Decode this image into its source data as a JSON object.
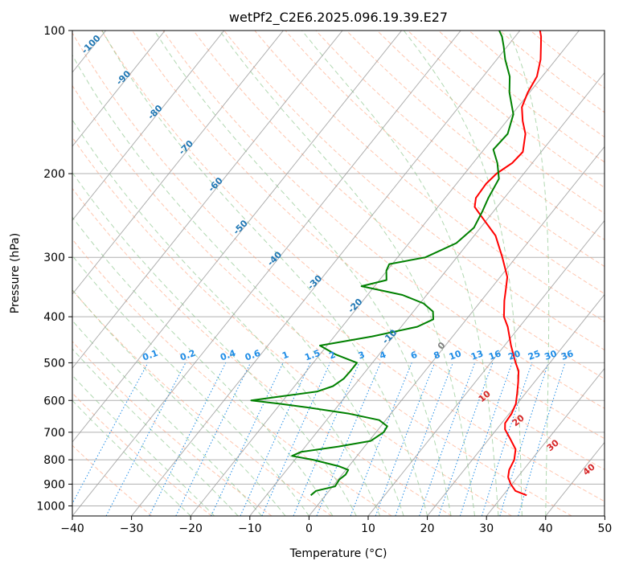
{
  "chart_data": {
    "type": "line",
    "diagram": "skew-T log-P",
    "title": "wetPf2_C2E6.2025.096.19.39.E27",
    "xlabel": "Temperature (°C)",
    "ylabel": "Pressure (hPa)",
    "xlim": [
      -40,
      50
    ],
    "ylim": [
      1050,
      100
    ],
    "yscale": "log",
    "x_ticks": [
      "−40",
      "−30",
      "−20",
      "−10",
      "0",
      "10",
      "20",
      "30",
      "40",
      "50"
    ],
    "x_tick_values": [
      -40,
      -30,
      -20,
      -10,
      0,
      10,
      20,
      30,
      40,
      50
    ],
    "y_ticks": [
      "100",
      "200",
      "300",
      "400",
      "500",
      "600",
      "700",
      "800",
      "900",
      "1000"
    ],
    "y_tick_values": [
      100,
      200,
      300,
      400,
      500,
      600,
      700,
      800,
      900,
      1000
    ],
    "colors": {
      "temperature": "#ff0000",
      "dewpoint": "#008000",
      "isotherm": "#999999",
      "dry_adiabat": "#ffa07a",
      "moist_adiabat": "#90c890",
      "mixing_ratio": "#1e8ce6",
      "dry_adiabat_label": "#d62728",
      "isotherm_label": "#1f77b4",
      "gridline": "#b0b0b0"
    },
    "isotherm_labels": [
      {
        "value": "-100",
        "t": -100
      },
      {
        "value": "-90",
        "t": -90
      },
      {
        "value": "-80",
        "t": -80
      },
      {
        "value": "-70",
        "t": -70
      },
      {
        "value": "-60",
        "t": -60
      },
      {
        "value": "-50",
        "t": -50
      },
      {
        "value": "-40",
        "t": -40
      },
      {
        "value": "-30",
        "t": -30
      },
      {
        "value": "-20",
        "t": -20
      },
      {
        "value": "-10",
        "t": -10
      },
      {
        "value": "0",
        "t": 0
      }
    ],
    "mixing_ratio_labels": [
      "0.1",
      "0.2",
      "0.4",
      "0.6",
      "1",
      "1.5",
      "2",
      "3",
      "4",
      "6",
      "8",
      "10",
      "13",
      "16",
      "20",
      "25",
      "30",
      "36"
    ],
    "mixing_ratio_values": [
      0.1,
      0.2,
      0.4,
      0.6,
      1,
      1.5,
      2,
      3,
      4,
      6,
      8,
      10,
      13,
      16,
      20,
      25,
      30,
      36
    ],
    "dry_adiabat_labels": [
      "10",
      "20",
      "30",
      "40"
    ],
    "series": [
      {
        "id": "temperature",
        "points": [
          [
            950,
            34.0
          ],
          [
            930,
            31.5
          ],
          [
            900,
            29.8
          ],
          [
            870,
            28.4
          ],
          [
            840,
            27.6
          ],
          [
            800,
            27.1
          ],
          [
            760,
            25.9
          ],
          [
            720,
            23.4
          ],
          [
            690,
            21.4
          ],
          [
            670,
            20.6
          ],
          [
            640,
            20.4
          ],
          [
            610,
            19.8
          ],
          [
            580,
            18.6
          ],
          [
            550,
            17.3
          ],
          [
            520,
            15.8
          ],
          [
            500,
            14.2
          ],
          [
            460,
            11.1
          ],
          [
            420,
            8.0
          ],
          [
            400,
            6.0
          ],
          [
            370,
            3.9
          ],
          [
            350,
            2.6
          ],
          [
            330,
            1.2
          ],
          [
            300,
            -2.3
          ],
          [
            270,
            -6.4
          ],
          [
            245,
            -11.6
          ],
          [
            235,
            -13.8
          ],
          [
            225,
            -14.8
          ],
          [
            210,
            -15.0
          ],
          [
            200,
            -14.6
          ],
          [
            190,
            -13.4
          ],
          [
            180,
            -13.1
          ],
          [
            165,
            -15.1
          ],
          [
            155,
            -17.3
          ],
          [
            145,
            -19.3
          ],
          [
            135,
            -20.3
          ],
          [
            125,
            -20.9
          ],
          [
            115,
            -22.6
          ],
          [
            108,
            -24.3
          ],
          [
            103,
            -25.6
          ],
          [
            100,
            -26.6
          ]
        ]
      },
      {
        "id": "dewpoint",
        "points": [
          [
            950,
            -2.5
          ],
          [
            930,
            -2.2
          ],
          [
            910,
            0.4
          ],
          [
            880,
            0.2
          ],
          [
            860,
            0.6
          ],
          [
            840,
            0.4
          ],
          [
            825,
            -1.7
          ],
          [
            800,
            -6.9
          ],
          [
            785,
            -11.0
          ],
          [
            770,
            -10.0
          ],
          [
            750,
            -4.4
          ],
          [
            730,
            0.3
          ],
          [
            700,
            1.3
          ],
          [
            680,
            1.1
          ],
          [
            660,
            -1.1
          ],
          [
            640,
            -7.0
          ],
          [
            620,
            -15.2
          ],
          [
            610,
            -20.0
          ],
          [
            600,
            -25.4
          ],
          [
            590,
            -21.5
          ],
          [
            575,
            -15.5
          ],
          [
            560,
            -13.5
          ],
          [
            540,
            -12.7
          ],
          [
            520,
            -12.6
          ],
          [
            500,
            -12.6
          ],
          [
            480,
            -17.4
          ],
          [
            460,
            -21.2
          ],
          [
            440,
            -13.6
          ],
          [
            420,
            -7.3
          ],
          [
            405,
            -5.6
          ],
          [
            390,
            -6.7
          ],
          [
            375,
            -9.4
          ],
          [
            360,
            -14.1
          ],
          [
            345,
            -22.2
          ],
          [
            335,
            -18.8
          ],
          [
            320,
            -20.1
          ],
          [
            310,
            -20.5
          ],
          [
            300,
            -15.3
          ],
          [
            280,
            -12.0
          ],
          [
            260,
            -11.1
          ],
          [
            240,
            -11.9
          ],
          [
            225,
            -12.7
          ],
          [
            205,
            -13.5
          ],
          [
            190,
            -15.9
          ],
          [
            178,
            -18.4
          ],
          [
            165,
            -18.1
          ],
          [
            150,
            -19.8
          ],
          [
            135,
            -23.4
          ],
          [
            125,
            -25.5
          ],
          [
            115,
            -28.6
          ],
          [
            108,
            -30.6
          ],
          [
            103,
            -32.2
          ],
          [
            100,
            -33.5
          ]
        ]
      }
    ]
  }
}
